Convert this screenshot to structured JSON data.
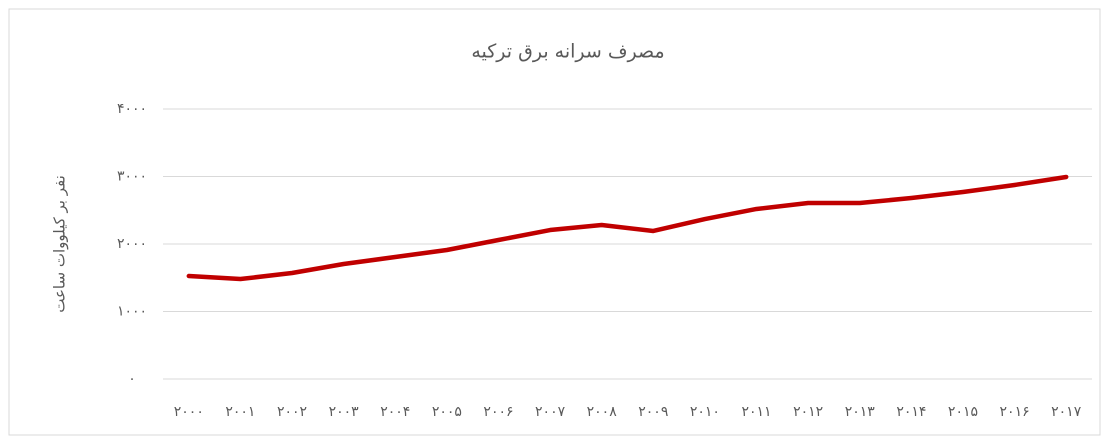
{
  "chart_data": {
    "type": "line",
    "title": "مصرف سرانه برق ترکیه",
    "y_label": "نفر بر کیلووات ساعت",
    "categories": [
      "۲۰۰۰",
      "۲۰۰۱",
      "۲۰۰۲",
      "۲۰۰۳",
      "۲۰۰۴",
      "۲۰۰۵",
      "۲۰۰۶",
      "۲۰۰۷",
      "۲۰۰۸",
      "۲۰۰۹",
      "۲۰۱۰",
      "۲۰۱۱",
      "۲۰۱۲",
      "۲۰۱۳",
      "۲۰۱۴",
      "۲۰۱۵",
      "۲۰۱۶",
      "۲۰۱۷"
    ],
    "series": [
      {
        "color": "#c00000",
        "values": [
          1526,
          1481,
          1570,
          1704,
          1807,
          1911,
          2059,
          2207,
          2281,
          2193,
          2370,
          2519,
          2607,
          2607,
          2681,
          2770,
          2874,
          2993
        ]
      }
    ],
    "ylim": [
      0,
      4000
    ],
    "yticks": [
      {
        "value": 0,
        "label": "۰"
      },
      {
        "value": 1000,
        "label": "۱۰۰۰"
      },
      {
        "value": 2000,
        "label": "۲۰۰۰"
      },
      {
        "value": 3000,
        "label": "۳۰۰۰"
      },
      {
        "value": 4000,
        "label": "۴۰۰۰"
      }
    ],
    "grid": true
  }
}
